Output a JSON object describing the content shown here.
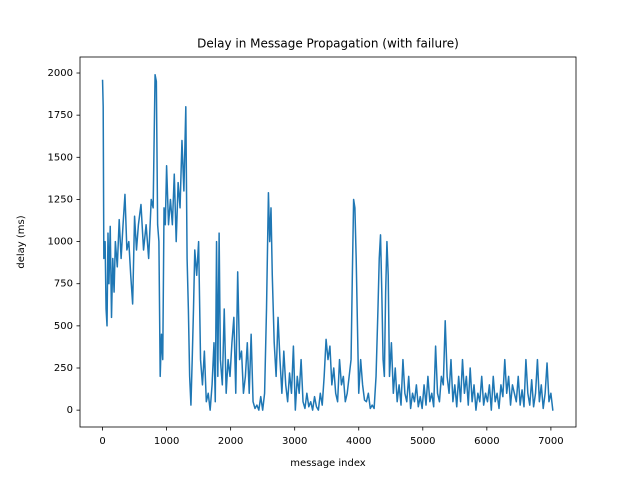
{
  "chart_data": {
    "type": "line",
    "title": "Delay in Message Propagation (with failure)",
    "x_label": "message index",
    "y_label": "delay (ms)",
    "color": "#1f77b4",
    "grid": false,
    "xlim": [
      -352,
      7392
    ],
    "ylim": [
      -100,
      2095
    ],
    "xticks": [
      0,
      1000,
      2000,
      3000,
      4000,
      5000,
      6000,
      7000
    ],
    "yticks": [
      0,
      250,
      500,
      750,
      1000,
      1250,
      1500,
      1750,
      2000
    ],
    "x": [
      0,
      10,
      20,
      40,
      55,
      70,
      85,
      100,
      120,
      140,
      160,
      180,
      200,
      230,
      260,
      290,
      320,
      350,
      380,
      410,
      440,
      470,
      500,
      530,
      560,
      600,
      640,
      680,
      720,
      760,
      790,
      820,
      840,
      860,
      880,
      900,
      920,
      940,
      960,
      980,
      1000,
      1030,
      1060,
      1090,
      1120,
      1150,
      1180,
      1210,
      1240,
      1270,
      1300,
      1320,
      1340,
      1360,
      1380,
      1400,
      1420,
      1440,
      1470,
      1500,
      1530,
      1560,
      1590,
      1620,
      1650,
      1680,
      1710,
      1740,
      1760,
      1780,
      1800,
      1820,
      1840,
      1870,
      1900,
      1930,
      1960,
      1990,
      2020,
      2050,
      2080,
      2110,
      2140,
      2170,
      2200,
      2230,
      2260,
      2290,
      2320,
      2350,
      2380,
      2410,
      2440,
      2470,
      2500,
      2530,
      2560,
      2590,
      2610,
      2630,
      2650,
      2680,
      2710,
      2740,
      2770,
      2800,
      2830,
      2860,
      2890,
      2920,
      2950,
      2980,
      3010,
      3040,
      3070,
      3100,
      3130,
      3160,
      3190,
      3220,
      3250,
      3280,
      3310,
      3340,
      3370,
      3400,
      3430,
      3460,
      3490,
      3520,
      3550,
      3580,
      3610,
      3640,
      3670,
      3700,
      3730,
      3760,
      3790,
      3820,
      3850,
      3880,
      3900,
      3920,
      3940,
      3960,
      3980,
      4000,
      4030,
      4060,
      4090,
      4120,
      4150,
      4180,
      4210,
      4240,
      4270,
      4300,
      4320,
      4340,
      4360,
      4380,
      4400,
      4420,
      4440,
      4460,
      4480,
      4510,
      4540,
      4570,
      4600,
      4630,
      4660,
      4690,
      4720,
      4750,
      4780,
      4810,
      4840,
      4870,
      4900,
      4930,
      4960,
      4990,
      5020,
      5050,
      5080,
      5110,
      5140,
      5170,
      5200,
      5230,
      5260,
      5290,
      5320,
      5350,
      5380,
      5410,
      5440,
      5470,
      5500,
      5530,
      5560,
      5590,
      5620,
      5650,
      5680,
      5710,
      5740,
      5770,
      5800,
      5830,
      5860,
      5890,
      5920,
      5950,
      5980,
      6010,
      6040,
      6070,
      6100,
      6130,
      6160,
      6190,
      6220,
      6250,
      6280,
      6310,
      6340,
      6370,
      6400,
      6430,
      6460,
      6490,
      6520,
      6550,
      6580,
      6610,
      6640,
      6670,
      6700,
      6730,
      6760,
      6790,
      6820,
      6850,
      6880,
      6910,
      6940,
      6970,
      7000,
      7030,
      7040
    ],
    "values": [
      1960,
      1800,
      900,
      1000,
      600,
      500,
      1050,
      750,
      1090,
      550,
      900,
      700,
      1000,
      850,
      1130,
      900,
      1100,
      1280,
      950,
      1000,
      800,
      630,
      1150,
      950,
      1100,
      1220,
      950,
      1100,
      900,
      1250,
      1200,
      1990,
      1950,
      1100,
      1000,
      200,
      450,
      300,
      1200,
      1100,
      1450,
      1100,
      1250,
      1100,
      1400,
      1000,
      1350,
      1200,
      1600,
      1300,
      1800,
      900,
      600,
      200,
      30,
      300,
      600,
      950,
      800,
      1000,
      300,
      150,
      350,
      50,
      100,
      0,
      150,
      400,
      50,
      1000,
      200,
      1050,
      300,
      150,
      600,
      100,
      300,
      200,
      400,
      550,
      100,
      820,
      300,
      350,
      100,
      200,
      400,
      100,
      450,
      50,
      10,
      30,
      0,
      80,
      0,
      100,
      600,
      1290,
      1000,
      1200,
      800,
      400,
      200,
      550,
      300,
      100,
      350,
      150,
      50,
      220,
      100,
      380,
      0,
      200,
      100,
      300,
      50,
      10,
      100,
      20,
      50,
      0,
      80,
      20,
      0,
      100,
      30,
      200,
      420,
      300,
      380,
      150,
      250,
      100,
      50,
      300,
      150,
      200,
      50,
      100,
      200,
      300,
      800,
      1250,
      1200,
      900,
      500,
      100,
      300,
      150,
      60,
      50,
      100,
      10,
      30,
      10,
      200,
      600,
      900,
      1040,
      700,
      300,
      200,
      700,
      1000,
      800,
      200,
      400,
      100,
      250,
      50,
      150,
      30,
      300,
      100,
      50,
      200,
      10,
      100,
      50,
      150,
      20,
      80,
      10,
      150,
      30,
      200,
      50,
      100,
      20,
      380,
      100,
      50,
      200,
      150,
      530,
      200,
      100,
      300,
      50,
      150,
      20,
      200,
      50,
      300,
      100,
      200,
      30,
      250,
      50,
      150,
      0,
      100,
      50,
      200,
      30,
      100,
      50,
      150,
      0,
      200,
      50,
      100,
      10,
      150,
      80,
      300,
      100,
      200,
      30,
      150,
      100,
      50,
      200,
      30,
      120,
      20,
      300,
      100,
      30,
      180,
      20,
      100,
      300,
      50,
      150,
      10,
      100,
      280,
      50,
      100,
      0,
      0
    ]
  }
}
